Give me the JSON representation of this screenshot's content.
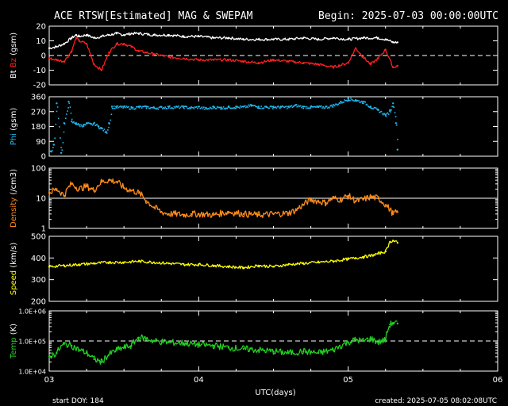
{
  "header": {
    "title": "ACE RTSW[Estimated] MAG & SWEPAM",
    "begin": "Begin: 2025-07-03 00:00:00UTC"
  },
  "footer": {
    "xlabel": "UTC(days)",
    "start": "start DOY: 184",
    "created": "created: 2025-07-05 08:02:08UTC"
  },
  "chart_data": {
    "type": "line",
    "x_ticks": [
      "03",
      "04",
      "05",
      "06"
    ],
    "x_range_days": [
      0,
      3
    ],
    "data_end_day": 2.33,
    "panels": [
      {
        "id": "mag",
        "ylabel_parts": [
          {
            "text": "Bt",
            "color": "#ffffff"
          },
          {
            "text": "Bz",
            "color": "#ff2020"
          },
          {
            "text": "(gsm)",
            "color": "#ffffff"
          }
        ],
        "scale": "linear",
        "ylim": [
          -20,
          20
        ],
        "ticks": [
          "-20",
          "-10",
          "0",
          "10",
          "20"
        ],
        "tick_values": [
          -20,
          -10,
          0,
          10,
          20
        ],
        "ref_dashed": 0,
        "series": [
          {
            "name": "Bt",
            "color": "#ffffff",
            "style": "line",
            "x": [
              0,
              0.05,
              0.1,
              0.15,
              0.18,
              0.2,
              0.25,
              0.3,
              0.35,
              0.4,
              0.45,
              0.5,
              0.55,
              0.6,
              0.7,
              0.8,
              0.9,
              1.0,
              1.1,
              1.2,
              1.3,
              1.4,
              1.5,
              1.6,
              1.7,
              1.8,
              1.9,
              2.0,
              2.1,
              2.2,
              2.25,
              2.3,
              2.33
            ],
            "values": [
              5,
              6,
              8,
              12,
              14,
              13,
              14,
              12,
              13,
              14,
              15,
              14,
              15,
              15,
              14,
              14,
              13,
              13,
              12,
              12,
              11,
              11,
              11,
              11,
              12,
              11,
              12,
              11,
              12,
              12,
              11,
              9,
              9
            ]
          },
          {
            "name": "Bz",
            "color": "#ff2020",
            "style": "line",
            "x": [
              0,
              0.05,
              0.1,
              0.15,
              0.18,
              0.2,
              0.25,
              0.3,
              0.35,
              0.4,
              0.45,
              0.5,
              0.55,
              0.6,
              0.7,
              0.8,
              0.9,
              1.0,
              1.1,
              1.2,
              1.3,
              1.4,
              1.5,
              1.6,
              1.7,
              1.8,
              1.9,
              2.0,
              2.05,
              2.1,
              2.15,
              2.2,
              2.25,
              2.3,
              2.33
            ],
            "values": [
              -2,
              -3,
              -4,
              3,
              12,
              10,
              8,
              -6,
              -10,
              2,
              8,
              8,
              6,
              3,
              1,
              -1,
              -2,
              -3,
              -3,
              -3,
              -4,
              -5,
              -3,
              -4,
              -5,
              -6,
              -8,
              -5,
              5,
              -1,
              -6,
              -2,
              4,
              -8,
              -7
            ]
          }
        ]
      },
      {
        "id": "phi",
        "ylabel_parts": [
          {
            "text": "Phi",
            "color": "#22b8f0"
          },
          {
            "text": "(gsm)",
            "color": "#ffffff"
          }
        ],
        "scale": "linear",
        "ylim": [
          0,
          360
        ],
        "ticks": [
          "0",
          "90",
          "180",
          "270",
          "360"
        ],
        "tick_values": [
          0,
          90,
          180,
          270,
          360
        ],
        "series": [
          {
            "name": "Phi",
            "color": "#22b8f0",
            "style": "scatter",
            "x": [
              0.01,
              0.03,
              0.05,
              0.08,
              0.1,
              0.13,
              0.15,
              0.18,
              0.2,
              0.23,
              0.25,
              0.28,
              0.3,
              0.33,
              0.35,
              0.38,
              0.4,
              0.42,
              0.45,
              0.5,
              0.55,
              0.6,
              0.65,
              0.7,
              0.75,
              0.8,
              0.85,
              0.9,
              0.95,
              1.0,
              1.05,
              1.1,
              1.15,
              1.2,
              1.25,
              1.3,
              1.35,
              1.4,
              1.45,
              1.5,
              1.55,
              1.6,
              1.65,
              1.7,
              1.75,
              1.8,
              1.85,
              1.9,
              1.95,
              2.0,
              2.05,
              2.1,
              2.15,
              2.2,
              2.25,
              2.28,
              2.3,
              2.32,
              2.33
            ],
            "values": [
              30,
              70,
              320,
              20,
              200,
              330,
              210,
              200,
              190,
              190,
              200,
              195,
              200,
              180,
              170,
              145,
              200,
              300,
              300,
              300,
              295,
              300,
              300,
              295,
              298,
              300,
              300,
              300,
              295,
              300,
              290,
              300,
              295,
              300,
              300,
              300,
              310,
              300,
              300,
              300,
              300,
              300,
              310,
              300,
              300,
              300,
              300,
              310,
              330,
              350,
              340,
              330,
              300,
              280,
              250,
              280,
              320,
              200,
              40
            ]
          }
        ]
      },
      {
        "id": "density",
        "ylabel_parts": [
          {
            "text": "Density",
            "color": "#ff8c1a"
          },
          {
            "text": "(/cm3)",
            "color": "#ffffff"
          }
        ],
        "scale": "log",
        "ylim": [
          1,
          100
        ],
        "ticks": [
          "1",
          "10",
          "100"
        ],
        "tick_values": [
          1,
          10,
          100
        ],
        "ref_solid": 10,
        "series": [
          {
            "name": "Density",
            "color": "#ff8c1a",
            "style": "line",
            "x": [
              0,
              0.05,
              0.1,
              0.15,
              0.2,
              0.25,
              0.3,
              0.35,
              0.4,
              0.45,
              0.5,
              0.55,
              0.6,
              0.65,
              0.7,
              0.75,
              0.8,
              0.85,
              0.9,
              0.95,
              1.0,
              1.1,
              1.2,
              1.3,
              1.4,
              1.5,
              1.6,
              1.65,
              1.7,
              1.75,
              1.8,
              1.85,
              1.9,
              1.95,
              2.0,
              2.05,
              2.1,
              2.15,
              2.2,
              2.25,
              2.3,
              2.33
            ],
            "values": [
              15,
              20,
              12,
              30,
              20,
              25,
              18,
              35,
              40,
              35,
              22,
              18,
              15,
              8,
              5,
              3.5,
              3,
              3,
              2.8,
              3,
              3,
              2.8,
              3.5,
              3,
              2.8,
              3,
              3.2,
              4,
              6,
              9,
              8,
              7,
              10,
              9,
              12,
              8,
              9,
              11,
              10,
              6,
              3,
              3.5
            ]
          }
        ]
      },
      {
        "id": "speed",
        "ylabel_parts": [
          {
            "text": "Speed",
            "color": "#ffff00"
          },
          {
            "text": "(km/s)",
            "color": "#ffffff"
          }
        ],
        "scale": "linear",
        "ylim": [
          200,
          500
        ],
        "ticks": [
          "200",
          "300",
          "400",
          "500"
        ],
        "tick_values": [
          200,
          300,
          400,
          500
        ],
        "series": [
          {
            "name": "Speed",
            "color": "#ffff00",
            "style": "line",
            "x": [
              0,
              0.1,
              0.2,
              0.3,
              0.4,
              0.5,
              0.6,
              0.7,
              0.8,
              0.9,
              1.0,
              1.1,
              1.2,
              1.3,
              1.4,
              1.5,
              1.6,
              1.7,
              1.8,
              1.9,
              2.0,
              2.05,
              2.1,
              2.15,
              2.2,
              2.25,
              2.28,
              2.3,
              2.33
            ],
            "values": [
              360,
              365,
              370,
              375,
              380,
              380,
              385,
              380,
              375,
              370,
              370,
              365,
              360,
              355,
              365,
              360,
              370,
              375,
              380,
              385,
              395,
              400,
              405,
              410,
              420,
              430,
              475,
              480,
              470
            ]
          }
        ]
      },
      {
        "id": "temp",
        "ylabel_parts": [
          {
            "text": "Temp",
            "color": "#22d022"
          },
          {
            "text": "(K)",
            "color": "#ffffff"
          }
        ],
        "scale": "log",
        "ylim": [
          10000,
          1000000
        ],
        "ticks": [
          "1.0E+04",
          "1.0E+05",
          "1.0E+06"
        ],
        "tick_values": [
          10000,
          100000,
          1000000
        ],
        "ref_dashed": 100000,
        "series": [
          {
            "name": "Temp",
            "color": "#22d022",
            "style": "line",
            "x": [
              0,
              0.05,
              0.1,
              0.15,
              0.2,
              0.25,
              0.3,
              0.35,
              0.4,
              0.45,
              0.5,
              0.55,
              0.6,
              0.65,
              0.7,
              0.8,
              0.9,
              1.0,
              1.1,
              1.2,
              1.3,
              1.4,
              1.5,
              1.6,
              1.7,
              1.8,
              1.9,
              2.0,
              2.05,
              2.1,
              2.15,
              2.2,
              2.25,
              2.28,
              2.3,
              2.33
            ],
            "values": [
              30000,
              40000,
              80000,
              70000,
              50000,
              40000,
              25000,
              20000,
              35000,
              50000,
              60000,
              70000,
              130000,
              120000,
              100000,
              90000,
              85000,
              75000,
              70000,
              60000,
              55000,
              50000,
              45000,
              40000,
              45000,
              40000,
              50000,
              90000,
              110000,
              100000,
              120000,
              90000,
              110000,
              350000,
              400000,
              380000
            ]
          }
        ]
      }
    ]
  }
}
